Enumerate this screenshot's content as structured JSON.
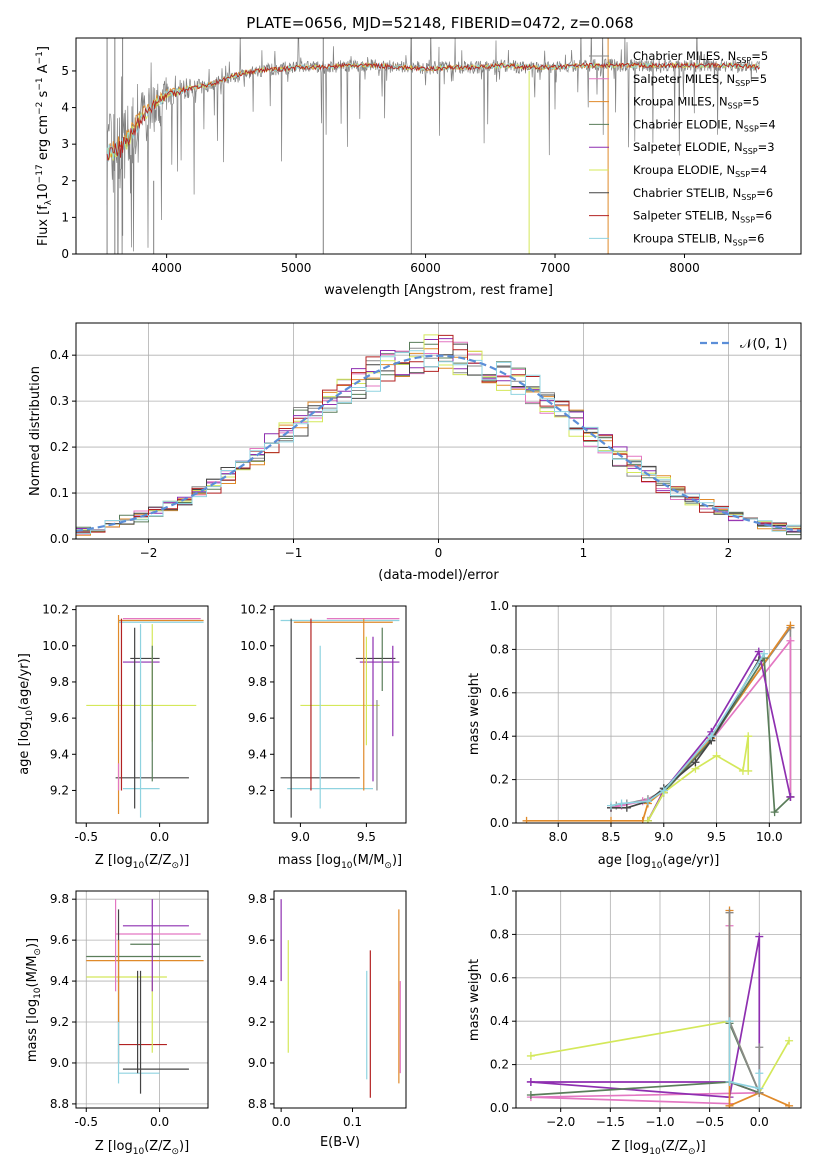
{
  "title": "PLATE=0656, MJD=52148, FIBERID=0472, z=0.068",
  "colors": {
    "Chabrier MILES": "#8a8a8a",
    "Salpeter MILES": "#e377c2",
    "Kroupa MILES": "#e08a2a",
    "Chabrier ELODIE": "#5a7d5a",
    "Salpeter ELODIE": "#8e2fb0",
    "Kroupa ELODIE": "#d4e85a",
    "Chabrier STELIB": "#444444",
    "Salpeter STELIB": "#b22222",
    "Kroupa STELIB": "#8fd3e0"
  },
  "chart_data": [
    {
      "type": "line",
      "xlabel": "wavelength [Angstrom, rest frame]",
      "ylabel": "Flux [f",
      "ylabel_rest": "10",
      "ylabel_exp": "−17",
      "ylabel_unit": " erg cm",
      "ylabel_e2": "−2",
      "ylabel_s": " s",
      "ylabel_e1": "−1",
      "ylabel_A": " A",
      "ylabel_e3": "−1",
      "ylabel_end": "]",
      "xlim": [
        3300,
        8900
      ],
      "ylim": [
        0,
        5.9
      ],
      "xticks": [
        4000,
        5000,
        6000,
        7000,
        8000
      ],
      "yticks": [
        0,
        1,
        2,
        3,
        4,
        5
      ],
      "legend": [
        {
          "name": "Chabrier MILES",
          "nssp": "5"
        },
        {
          "name": "Salpeter MILES",
          "nssp": "5"
        },
        {
          "name": "Kroupa MILES",
          "nssp": "5"
        },
        {
          "name": "Chabrier ELODIE",
          "nssp": "4"
        },
        {
          "name": "Salpeter ELODIE",
          "nssp": "3"
        },
        {
          "name": "Kroupa ELODIE",
          "nssp": "4"
        },
        {
          "name": "Chabrier STELIB",
          "nssp": "6"
        },
        {
          "name": "Salpeter STELIB",
          "nssp": "6"
        },
        {
          "name": "Kroupa STELIB",
          "nssp": "6"
        }
      ],
      "legend_label": "N",
      "legend_sub": "SSP",
      "legend_placement": "right",
      "model_continuum": [
        [
          3550,
          2.7
        ],
        [
          3600,
          2.8
        ],
        [
          3650,
          2.9
        ],
        [
          3700,
          3.1
        ],
        [
          3750,
          3.4
        ],
        [
          3800,
          3.7
        ],
        [
          3850,
          3.9
        ],
        [
          3900,
          4.1
        ],
        [
          3950,
          4.2
        ],
        [
          4000,
          4.35
        ],
        [
          4100,
          4.45
        ],
        [
          4200,
          4.55
        ],
        [
          4300,
          4.6
        ],
        [
          4400,
          4.7
        ],
        [
          4500,
          4.85
        ],
        [
          4600,
          4.95
        ],
        [
          4700,
          5.0
        ],
        [
          4800,
          5.05
        ],
        [
          4900,
          5.05
        ],
        [
          5000,
          5.1
        ],
        [
          5200,
          5.1
        ],
        [
          5400,
          5.15
        ],
        [
          5600,
          5.15
        ],
        [
          5800,
          5.1
        ],
        [
          6000,
          5.05
        ],
        [
          6200,
          5.1
        ],
        [
          6400,
          5.1
        ],
        [
          6600,
          5.15
        ],
        [
          6800,
          5.1
        ],
        [
          7000,
          5.1
        ],
        [
          7200,
          5.15
        ],
        [
          7400,
          5.15
        ],
        [
          7600,
          5.15
        ],
        [
          7800,
          5.15
        ],
        [
          8000,
          5.15
        ],
        [
          8200,
          5.15
        ],
        [
          8400,
          5.15
        ],
        [
          8600,
          5.1
        ]
      ]
    },
    {
      "type": "histogram",
      "xlabel": "(data-model)/error",
      "ylabel": "Normed distribution",
      "xlim": [
        -2.5,
        2.5
      ],
      "ylim": [
        0,
        0.47
      ],
      "xticks": [
        -2,
        -1,
        0,
        1,
        2
      ],
      "yticks": [
        0.0,
        0.1,
        0.2,
        0.3,
        0.4
      ],
      "legend": "𝒩(0, 1)",
      "legend_placement": "top-right",
      "grid": true
    },
    {
      "type": "errorbar",
      "xlabel": "Z [log",
      "xlabel_sub": "10",
      "xlabel_mid": "(Z/Z",
      "xlabel_sun": "⊙",
      "xlabel_end": ")]",
      "ylabel": "age  [log",
      "ylabel_sub": "10",
      "ylabel_end": "(age/yr)]",
      "xlim": [
        -0.57,
        0.33
      ],
      "ylim": [
        9.02,
        10.22
      ],
      "xticks": [
        "-0.5",
        "0.0"
      ],
      "yticks": [
        "9.2",
        "9.4",
        "9.6",
        "9.8",
        "10.0",
        "10.2"
      ]
    },
    {
      "type": "errorbar",
      "xlabel": "mass [log",
      "xlabel_sub": "10",
      "xlabel_end": "(M/M",
      "xlabel_sun": "⊙",
      "xlabel_close": ")]",
      "xlim": [
        8.8,
        9.8
      ],
      "ylim": [
        9.02,
        10.22
      ],
      "xticks": [
        "9.0",
        "9.5"
      ],
      "yticks": [
        "9.2",
        "9.4",
        "9.6",
        "9.8",
        "10.0",
        "10.2"
      ]
    },
    {
      "type": "line",
      "xlabel": "age  [log",
      "xlabel_sub": "10",
      "xlabel_end": "(age/yr)]",
      "ylabel": "mass weight",
      "xlim": [
        7.6,
        10.3
      ],
      "ylim": [
        0,
        1
      ],
      "xticks": [
        "8.0",
        "8.5",
        "9.0",
        "9.5",
        "10.0"
      ],
      "yticks": [
        "0.0",
        "0.2",
        "0.4",
        "0.6",
        "0.8",
        "1.0"
      ],
      "grid": true,
      "series": [
        {
          "key": "Chabrier MILES",
          "x": [
            8.5,
            8.55,
            8.65,
            8.85,
            9.0,
            9.45,
            10.2,
            10.2
          ],
          "y": [
            0.07,
            0.08,
            0.09,
            0.11,
            0.15,
            0.4,
            0.9,
            0.12
          ]
        },
        {
          "key": "Salpeter MILES",
          "x": [
            8.5,
            8.6,
            8.8,
            9.0,
            9.45,
            10.2,
            10.2
          ],
          "y": [
            0.07,
            0.08,
            0.1,
            0.14,
            0.38,
            0.84,
            0.12
          ]
        },
        {
          "key": "Kroupa MILES",
          "x": [
            7.7,
            8.5,
            8.8,
            8.85,
            9.0,
            9.45,
            10.2
          ],
          "y": [
            0.01,
            0.01,
            0.01,
            0.09,
            0.15,
            0.39,
            0.91
          ]
        },
        {
          "key": "Chabrier ELODIE",
          "x": [
            8.85,
            9.0,
            9.45,
            9.95,
            10.05,
            10.2
          ],
          "y": [
            0.01,
            0.14,
            0.38,
            0.76,
            0.05,
            0.12
          ]
        },
        {
          "key": "Salpeter ELODIE",
          "x": [
            8.85,
            9.0,
            9.45,
            9.9,
            10.2
          ],
          "y": [
            0.01,
            0.15,
            0.42,
            0.79,
            0.12
          ]
        },
        {
          "key": "Kroupa ELODIE",
          "x": [
            8.85,
            9.0,
            9.3,
            9.5,
            9.75,
            9.8,
            9.8
          ],
          "y": [
            0.01,
            0.14,
            0.25,
            0.31,
            0.24,
            0.4,
            0.24
          ]
        },
        {
          "key": "Chabrier STELIB",
          "x": [
            8.5,
            8.65,
            8.85,
            9.0,
            9.3,
            9.45,
            9.9
          ],
          "y": [
            0.07,
            0.07,
            0.1,
            0.16,
            0.28,
            0.38,
            0.75
          ]
        },
        {
          "key": "Kroupa STELIB",
          "x": [
            8.5,
            8.6,
            8.85,
            9.0,
            9.45,
            9.95
          ],
          "y": [
            0.08,
            0.09,
            0.1,
            0.15,
            0.4,
            0.78
          ]
        }
      ]
    },
    {
      "type": "errorbar",
      "xlabel": "Z [log",
      "xlabel_sub": "10",
      "xlabel_mid": "(Z/Z",
      "xlabel_sun": "⊙",
      "xlabel_end": ")]",
      "ylabel": "mass [log",
      "ylabel_sub": "10",
      "ylabel_mid": "(M/M",
      "ylabel_sun": "⊙",
      "ylabel_end": ")]",
      "xlim": [
        -0.57,
        0.33
      ],
      "ylim": [
        8.78,
        9.84
      ],
      "xticks": [
        "-0.5",
        "0.0"
      ],
      "yticks": [
        "8.8",
        "9.0",
        "9.2",
        "9.4",
        "9.6",
        "9.8"
      ],
      "grid": true
    },
    {
      "type": "errorbar",
      "xlabel": "E(B-V)",
      "xlim": [
        -0.01,
        0.175
      ],
      "ylim": [
        8.78,
        9.84
      ],
      "xticks": [
        "0.0",
        "0.1"
      ],
      "yticks": [
        "8.8",
        "9.0",
        "9.2",
        "9.4",
        "9.6",
        "9.8"
      ]
    },
    {
      "type": "line",
      "xlabel": "Z [log",
      "xlabel_sub": "10",
      "xlabel_mid": "(Z/Z",
      "xlabel_sun": "⊙",
      "xlabel_end": ")]",
      "ylabel": "mass weight",
      "xlim": [
        -2.45,
        0.42
      ],
      "ylim": [
        0,
        1
      ],
      "xticks": [
        "−2.0",
        "−1.5",
        "−1.0",
        "−0.5",
        "0.0"
      ],
      "yticks": [
        "0.0",
        "0.2",
        "0.4",
        "0.6",
        "0.8",
        "1.0"
      ],
      "grid": true,
      "series": [
        {
          "key": "Salpeter MILES",
          "x": [
            -0.3,
            -0.3,
            0.0,
            -2.3,
            -0.3
          ],
          "y": [
            0.84,
            0.12,
            0.07,
            0.05,
            0.02
          ]
        },
        {
          "key": "Kroupa ELODIE",
          "x": [
            -2.3,
            -0.3,
            0.0,
            0.3
          ],
          "y": [
            0.24,
            0.4,
            0.07,
            0.31
          ]
        },
        {
          "key": "Salpeter ELODIE",
          "x": [
            -2.3,
            -0.3,
            0.0,
            0.0,
            -0.3,
            -2.3
          ],
          "y": [
            0.12,
            0.05,
            0.79,
            0.07,
            0.12,
            0.12
          ]
        },
        {
          "key": "Chabrier ELODIE",
          "x": [
            -2.3,
            -0.3,
            0.0,
            -0.3
          ],
          "y": [
            0.06,
            0.12,
            0.07,
            0.39
          ]
        },
        {
          "key": "Kroupa MILES",
          "x": [
            -0.3,
            -0.3,
            0.0,
            0.3
          ],
          "y": [
            0.91,
            0.01,
            0.07,
            0.01
          ]
        },
        {
          "key": "Chabrier MILES",
          "x": [
            -0.3,
            -0.3,
            0.0,
            0.0
          ],
          "y": [
            0.9,
            0.4,
            0.07,
            0.28
          ]
        },
        {
          "key": "Kroupa STELIB",
          "x": [
            -0.3,
            -0.3,
            0.0,
            0.0
          ],
          "y": [
            0.4,
            0.12,
            0.09,
            0.16
          ]
        }
      ]
    }
  ]
}
